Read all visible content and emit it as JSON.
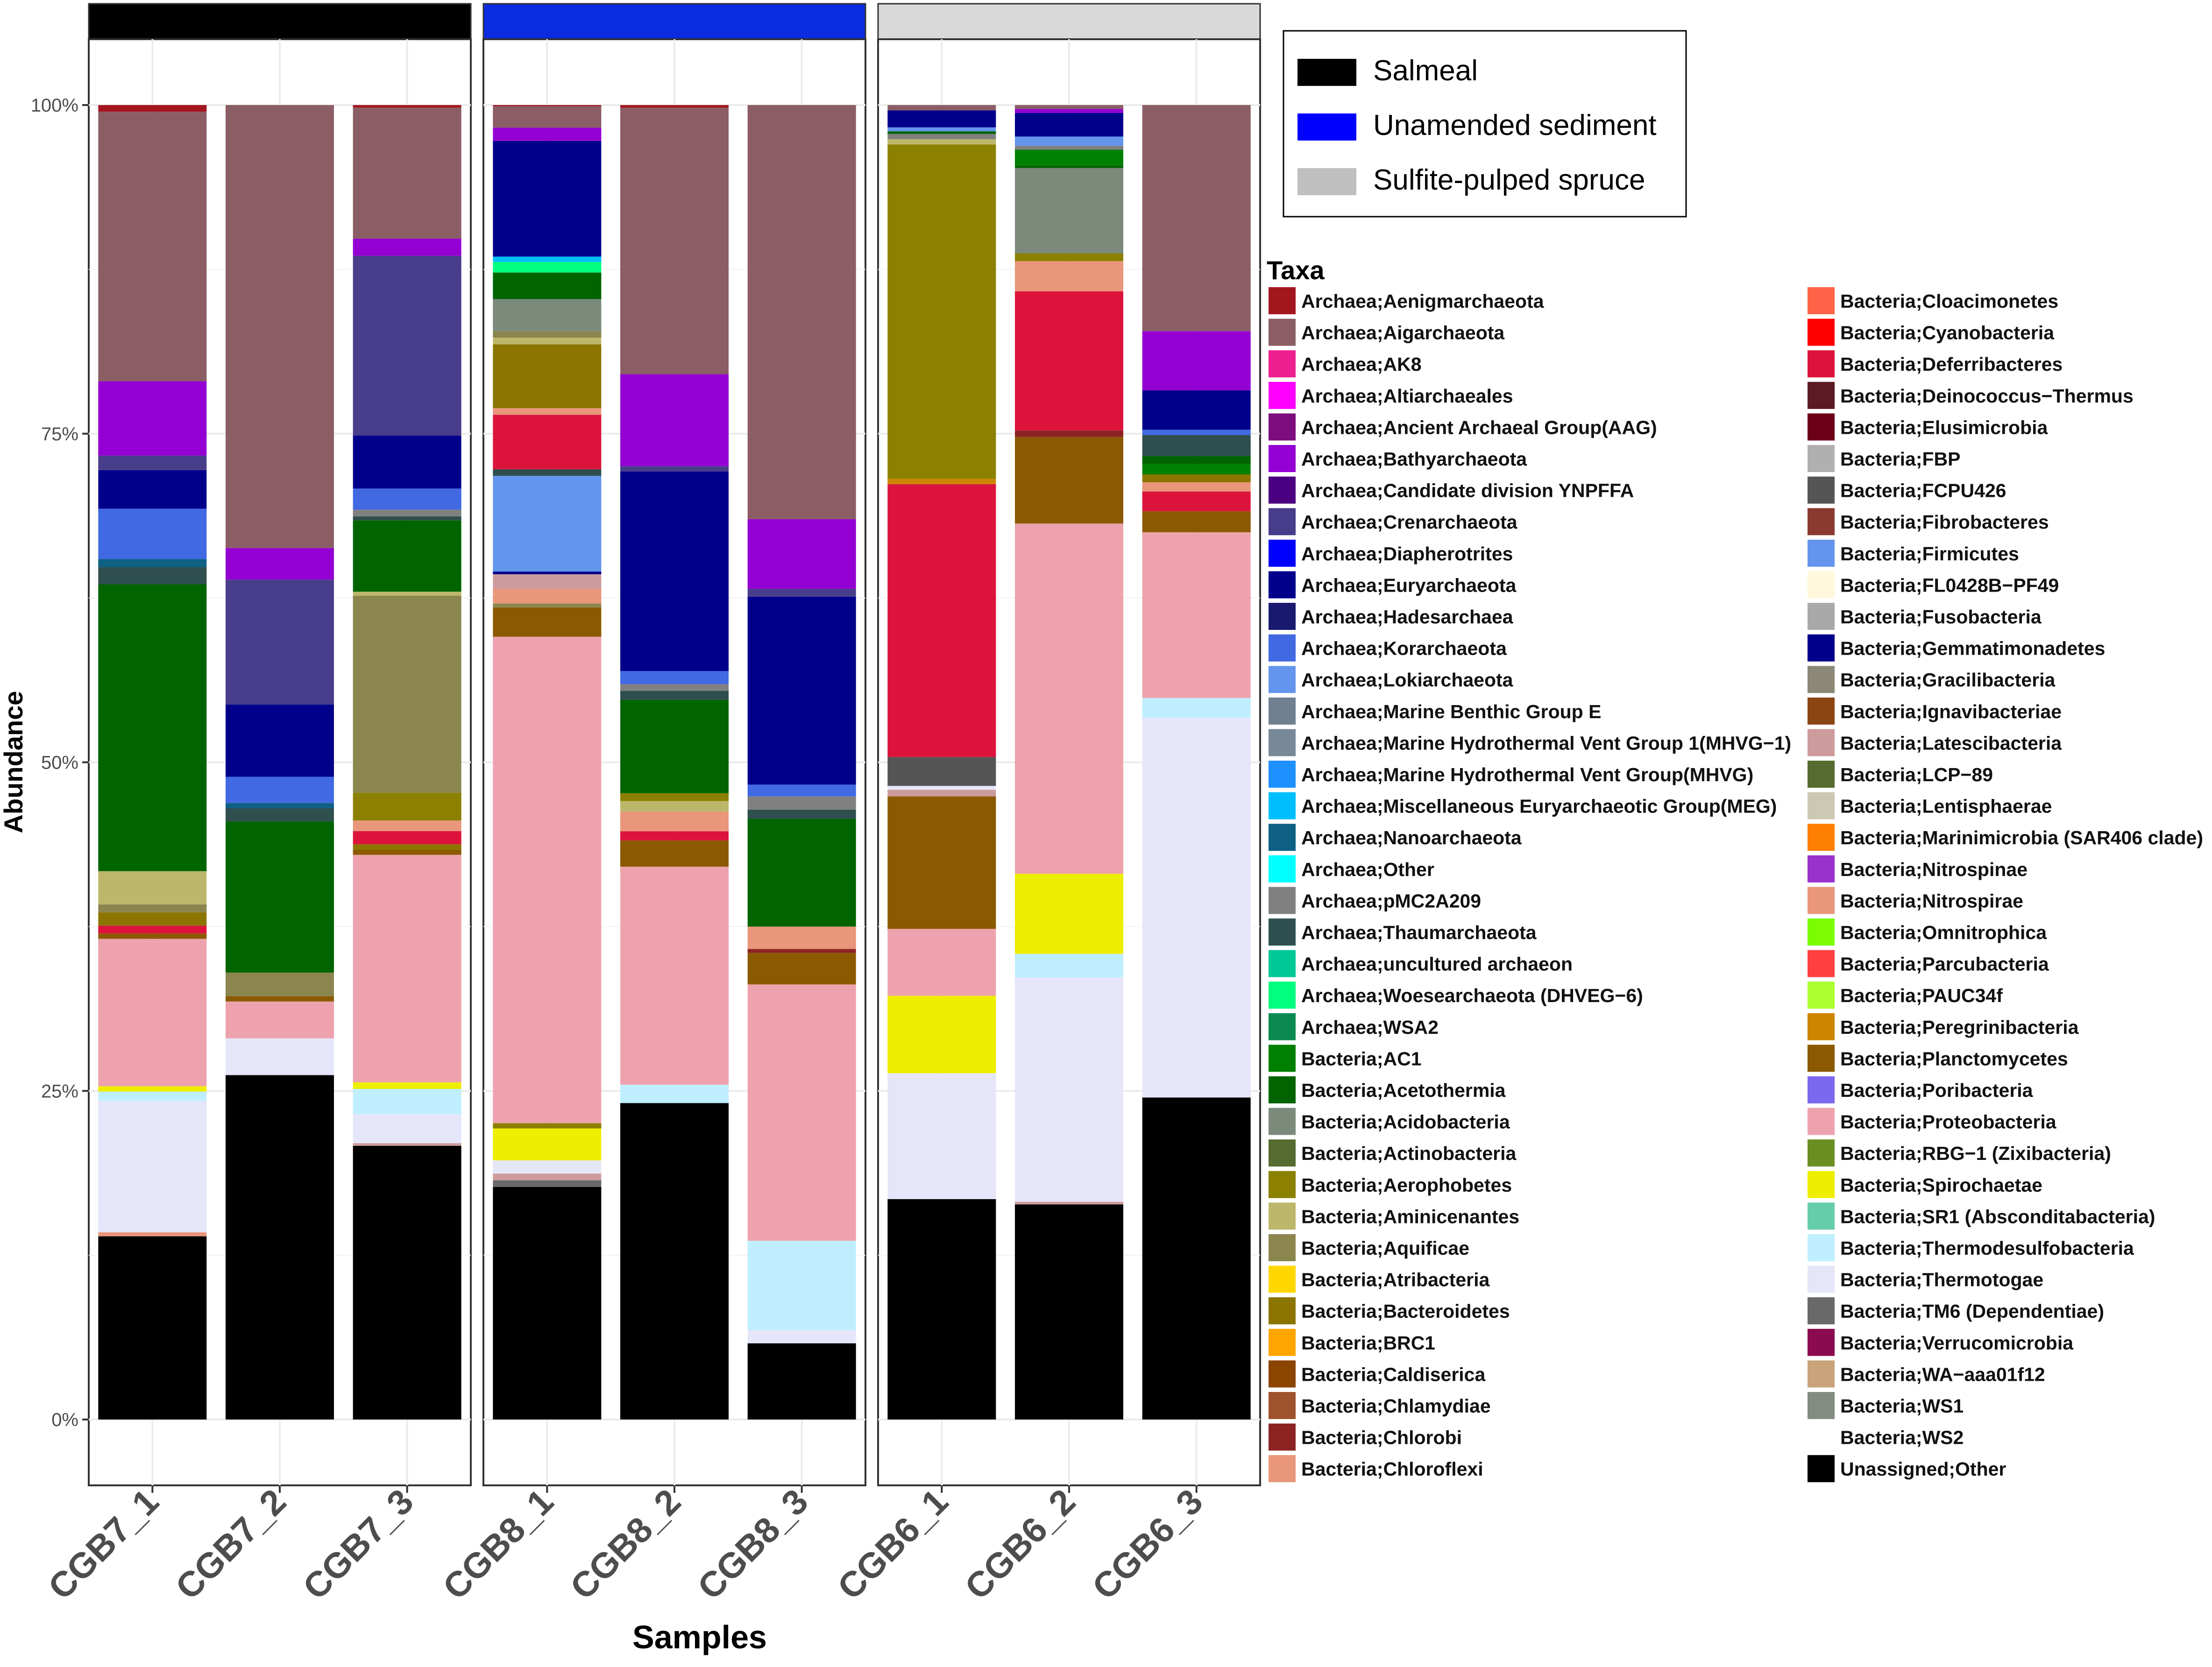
{
  "chart_data": {
    "type": "bar",
    "stacked": true,
    "percent": true,
    "ylabel": "Abundance",
    "xlabel": "Samples",
    "ylim": [
      0,
      100
    ],
    "yticks": [
      0,
      25,
      50,
      75,
      100
    ],
    "ytick_labels": [
      "0%",
      "25%",
      "50%",
      "75%",
      "100%"
    ],
    "grid": true,
    "legend_position": "right",
    "group_legend": {
      "items": [
        {
          "label": "Salmeal",
          "color": "#000000"
        },
        {
          "label": "Unamended sediment",
          "color": "#0000ff"
        },
        {
          "label": "Sulfite-pulped spruce",
          "color": "#bfbfbf"
        }
      ]
    },
    "groups": [
      {
        "name": "Salmeal",
        "strip_color": "#000000",
        "samples": [
          "CGB7_1",
          "CGB7_2",
          "CGB7_3"
        ]
      },
      {
        "name": "Unamended sediment",
        "strip_color": "#0a2be0",
        "samples": [
          "CGB8_1",
          "CGB8_2",
          "CGB8_3"
        ]
      },
      {
        "name": "Sulfite-pulped spruce",
        "strip_color": "#d9d9d9",
        "samples": [
          "CGB6_1",
          "CGB6_2",
          "CGB6_3"
        ]
      }
    ],
    "taxa_legend_title": "Taxa",
    "taxa": [
      {
        "name": "Archaea;Aenigmarchaeota",
        "color": "#a4161e"
      },
      {
        "name": "Archaea;Aigarchaeota",
        "color": "#8b5e65"
      },
      {
        "name": "Archaea;AK8",
        "color": "#ee1f8f"
      },
      {
        "name": "Archaea;Altiarchaeales",
        "color": "#ff00ff"
      },
      {
        "name": "Archaea;Ancient Archaeal Group(AAG)",
        "color": "#7d0d7f"
      },
      {
        "name": "Archaea;Bathyarchaeota",
        "color": "#9400d3"
      },
      {
        "name": "Archaea;Candidate division YNPFFA",
        "color": "#4b0082"
      },
      {
        "name": "Archaea;Crenarchaeota",
        "color": "#483d8b"
      },
      {
        "name": "Archaea;Diapherotrites",
        "color": "#0000ff"
      },
      {
        "name": "Archaea;Euryarchaeota",
        "color": "#00008b"
      },
      {
        "name": "Archaea;Hadesarchaea",
        "color": "#191970"
      },
      {
        "name": "Archaea;Korarchaeota",
        "color": "#4169e1"
      },
      {
        "name": "Archaea;Lokiarchaeota",
        "color": "#6495ed"
      },
      {
        "name": "Archaea;Marine Benthic Group E",
        "color": "#708090"
      },
      {
        "name": "Archaea;Marine Hydrothermal Vent Group 1(MHVG−1)",
        "color": "#778899"
      },
      {
        "name": "Archaea;Marine Hydrothermal Vent Group(MHVG)",
        "color": "#1e90ff"
      },
      {
        "name": "Archaea;Miscellaneous Euryarchaeotic Group(MEG)",
        "color": "#00bfff"
      },
      {
        "name": "Archaea;Nanoarchaeota",
        "color": "#0e6084"
      },
      {
        "name": "Archaea;Other",
        "color": "#00ffff"
      },
      {
        "name": "Archaea;pMC2A209",
        "color": "#808080"
      },
      {
        "name": "Archaea;Thaumarchaeota",
        "color": "#2f4f4f"
      },
      {
        "name": "Archaea;uncultured archaeon",
        "color": "#00c896"
      },
      {
        "name": "Archaea;Woesearchaeota (DHVEG−6)",
        "color": "#00ff7f"
      },
      {
        "name": "Archaea;WSA2",
        "color": "#0b8a4f"
      },
      {
        "name": "Bacteria;AC1",
        "color": "#008000"
      },
      {
        "name": "Bacteria;Acetothermia",
        "color": "#006400"
      },
      {
        "name": "Bacteria;Acidobacteria",
        "color": "#7c8a7c"
      },
      {
        "name": "Bacteria;Actinobacteria",
        "color": "#556b2f"
      },
      {
        "name": "Bacteria;Aerophobetes",
        "color": "#8b8000"
      },
      {
        "name": "Bacteria;Aminicenantes",
        "color": "#bdb76b"
      },
      {
        "name": "Bacteria;Aquificae",
        "color": "#8b864e"
      },
      {
        "name": "Bacteria;Atribacteria",
        "color": "#ffd700"
      },
      {
        "name": "Bacteria;Bacteroidetes",
        "color": "#8b7500"
      },
      {
        "name": "Bacteria;BRC1",
        "color": "#ffa500"
      },
      {
        "name": "Bacteria;Caldiserica",
        "color": "#8b4500"
      },
      {
        "name": "Bacteria;Chlamydiae",
        "color": "#a0522d"
      },
      {
        "name": "Bacteria;Chlorobi",
        "color": "#8b2323"
      },
      {
        "name": "Bacteria;Chloroflexi",
        "color": "#e9967a"
      },
      {
        "name": "Bacteria;Cloacimonetes",
        "color": "#ff6347"
      },
      {
        "name": "Bacteria;Cyanobacteria",
        "color": "#ff0000"
      },
      {
        "name": "Bacteria;Deferribacteres",
        "color": "#dc143c"
      },
      {
        "name": "Bacteria;Deinococcus−Thermus",
        "color": "#5c1a24"
      },
      {
        "name": "Bacteria;Elusimicrobia",
        "color": "#6b0018"
      },
      {
        "name": "Bacteria;FBP",
        "color": "#b0b0b0"
      },
      {
        "name": "Bacteria;FCPU426",
        "color": "#555555"
      },
      {
        "name": "Bacteria;Fibrobacteres",
        "color": "#8b3a2f"
      },
      {
        "name": "Bacteria;Firmicutes",
        "color": "#6495ed"
      },
      {
        "name": "Bacteria;FL0428B−PF49",
        "color": "#fff8dc"
      },
      {
        "name": "Bacteria;Fusobacteria",
        "color": "#a9a9a9"
      },
      {
        "name": "Bacteria;Gemmatimonadetes",
        "color": "#00008b"
      },
      {
        "name": "Bacteria;Gracilibacteria",
        "color": "#8b8878"
      },
      {
        "name": "Bacteria;Ignavibacteriae",
        "color": "#8b4513"
      },
      {
        "name": "Bacteria;Latescibacteria",
        "color": "#cd9b9b"
      },
      {
        "name": "Bacteria;LCP−89",
        "color": "#556b2f"
      },
      {
        "name": "Bacteria;Lentisphaerae",
        "color": "#cdc8b1"
      },
      {
        "name": "Bacteria;Marinimicrobia (SAR406 clade)",
        "color": "#ff7f00"
      },
      {
        "name": "Bacteria;Nitrospinae",
        "color": "#9932cc"
      },
      {
        "name": "Bacteria;Nitrospirae",
        "color": "#e9967a"
      },
      {
        "name": "Bacteria;Omnitrophica",
        "color": "#7cfc00"
      },
      {
        "name": "Bacteria;Parcubacteria",
        "color": "#ff4040"
      },
      {
        "name": "Bacteria;PAUC34f",
        "color": "#adff2f"
      },
      {
        "name": "Bacteria;Peregrinibacteria",
        "color": "#cd8500"
      },
      {
        "name": "Bacteria;Planctomycetes",
        "color": "#8b5a00"
      },
      {
        "name": "Bacteria;Poribacteria",
        "color": "#7b68ee"
      },
      {
        "name": "Bacteria;Proteobacteria",
        "color": "#eea2ad"
      },
      {
        "name": "Bacteria;RBG−1 (Zixibacteria)",
        "color": "#6b8e23"
      },
      {
        "name": "Bacteria;Spirochaetae",
        "color": "#eeee00"
      },
      {
        "name": "Bacteria;SR1 (Absconditabacteria)",
        "color": "#66cdaa"
      },
      {
        "name": "Bacteria;Thermodesulfobacteria",
        "color": "#bfefff"
      },
      {
        "name": "Bacteria;Thermotogae",
        "color": "#e6e6fa"
      },
      {
        "name": "Bacteria;TM6 (Dependentiae)",
        "color": "#696969"
      },
      {
        "name": "Bacteria;Verrucomicrobia",
        "color": "#8b0a50"
      },
      {
        "name": "Bacteria;WA−aaa01f12",
        "color": "#c9a47a"
      },
      {
        "name": "Bacteria;WS1",
        "color": "#838b83"
      },
      {
        "name": "Bacteria;WS2",
        "color": "#ffffff"
      },
      {
        "name": "Unassigned;Other",
        "color": "#000000"
      }
    ],
    "series_order_note": "segments listed bottom-to-top as [taxon, percent]",
    "bars": {
      "CGB7_1": [
        [
          "Unassigned;Other",
          13.8
        ],
        [
          "Bacteria;Chloroflexi",
          0.3
        ],
        [
          "Bacteria;Thermotogae",
          9.9
        ],
        [
          "Bacteria;Thermodesulfobacteria",
          0.7
        ],
        [
          "Bacteria;Spirochaetae",
          0.4
        ],
        [
          "Bacteria;Proteobacteria",
          11.1
        ],
        [
          "Bacteria;Planctomycetes",
          0.4
        ],
        [
          "Bacteria;Deferribacteres",
          0.6
        ],
        [
          "Bacteria;Bacteroidetes",
          1.0
        ],
        [
          "Bacteria;Aquificae",
          0.6
        ],
        [
          "Bacteria;Aminicenantes",
          2.5
        ],
        [
          "Bacteria;Acetothermia",
          21.6
        ],
        [
          "Archaea;Thaumarchaeota",
          1.3
        ],
        [
          "Archaea;Nanoarchaeota",
          0.6
        ],
        [
          "Archaea;Korarchaeota",
          3.8
        ],
        [
          "Archaea;Euryarchaeota",
          2.9
        ],
        [
          "Archaea;Crenarchaeota",
          1.1
        ],
        [
          "Archaea;Bathyarchaeota",
          5.6
        ],
        [
          "Archaea;Aigarchaeota",
          20.3
        ],
        [
          "Archaea;Aenigmarchaeota",
          0.5
        ]
      ],
      "CGB7_2": [
        [
          "Unassigned;Other",
          26.2
        ],
        [
          "Bacteria;Thermotogae",
          2.8
        ],
        [
          "Bacteria;Proteobacteria",
          2.8
        ],
        [
          "Bacteria;Planctomycetes",
          0.4
        ],
        [
          "Bacteria;Aquificae",
          1.8
        ],
        [
          "Bacteria;Acetothermia",
          11.5
        ],
        [
          "Archaea;Thaumarchaeota",
          1.0
        ],
        [
          "Archaea;Nanoarchaeota",
          0.4
        ],
        [
          "Archaea;Korarchaeota",
          2.0
        ],
        [
          "Archaea;Euryarchaeota",
          5.5
        ],
        [
          "Archaea;Crenarchaeota",
          9.5
        ],
        [
          "Archaea;Bathyarchaeota",
          2.4
        ],
        [
          "Archaea;Aigarchaeota",
          33.7
        ]
      ],
      "CGB7_3": [
        [
          "Unassigned;Other",
          20.7
        ],
        [
          "Bacteria;Latescibacteria",
          0.2
        ],
        [
          "Bacteria;Thermotogae",
          2.2
        ],
        [
          "Bacteria;Thermodesulfobacteria",
          1.9
        ],
        [
          "Bacteria;Spirochaetae",
          0.5
        ],
        [
          "Bacteria;Proteobacteria",
          17.2
        ],
        [
          "Bacteria;Planctomycetes",
          0.4
        ],
        [
          "Bacteria;Bacteroidetes",
          0.4
        ],
        [
          "Bacteria;Deferribacteres",
          1.0
        ],
        [
          "Bacteria;Chloroflexi",
          0.8
        ],
        [
          "Bacteria;Aerophobetes",
          2.1
        ],
        [
          "Bacteria;Aquificae",
          14.9
        ],
        [
          "Bacteria;Aminicenantes",
          0.3
        ],
        [
          "Bacteria;Acetothermia",
          5.4
        ],
        [
          "Archaea;Thaumarchaeota",
          0.3
        ],
        [
          "Archaea;pMC2A209",
          0.5
        ],
        [
          "Archaea;Korarchaeota",
          1.6
        ],
        [
          "Archaea;Euryarchaeota",
          4.0
        ],
        [
          "Archaea;Crenarchaeota",
          13.6
        ],
        [
          "Archaea;Bathyarchaeota",
          1.3
        ],
        [
          "Archaea;Aigarchaeota",
          9.9
        ],
        [
          "Archaea;Aenigmarchaeota",
          0.2
        ]
      ],
      "CGB8_1": [
        [
          "Unassigned;Other",
          17.5
        ],
        [
          "Bacteria;TM6 (Dependentiae)",
          0.5
        ],
        [
          "Bacteria;Latescibacteria",
          0.5
        ],
        [
          "Bacteria;Thermotogae",
          1.0
        ],
        [
          "Bacteria;Spirochaetae",
          2.4
        ],
        [
          "Bacteria;Aerophobetes",
          0.4
        ],
        [
          "Bacteria;Proteobacteria",
          36.6
        ],
        [
          "Bacteria;Planctomycetes",
          2.2
        ],
        [
          "Bacteria;Aquificae",
          0.3
        ],
        [
          "Bacteria;Chloroflexi",
          1.1
        ],
        [
          "Bacteria;Latescibacteria",
          1.1
        ],
        [
          "Archaea;Euryarchaeota",
          0.2
        ],
        [
          "Archaea;Lokiarchaeota",
          7.2
        ],
        [
          "Archaea;Thaumarchaeota",
          0.5
        ],
        [
          "Bacteria;Deferribacteres",
          4.1
        ],
        [
          "Bacteria;Chloroflexi",
          0.5
        ],
        [
          "Bacteria;Bacteroidetes",
          4.8
        ],
        [
          "Bacteria;Aminicenantes",
          0.5
        ],
        [
          "Bacteria;Aquificae",
          0.5
        ],
        [
          "Bacteria;Acidobacteria",
          2.4
        ],
        [
          "Bacteria;Acetothermia",
          2.0
        ],
        [
          "Archaea;Woesearchaeota (DHVEG−6)",
          0.8
        ],
        [
          "Archaea;Miscellaneous Euryarchaeotic Group(MEG)",
          0.4
        ],
        [
          "Archaea;Euryarchaeota",
          8.7
        ],
        [
          "Archaea;Bathyarchaeota",
          1.0
        ],
        [
          "Archaea;Aigarchaeota",
          1.6
        ],
        [
          "Archaea;Aenigmarchaeota",
          0.1
        ]
      ],
      "CGB8_2": [
        [
          "Unassigned;Other",
          24.1
        ],
        [
          "Bacteria;Thermodesulfobacteria",
          1.4
        ],
        [
          "Bacteria;Proteobacteria",
          16.6
        ],
        [
          "Bacteria;Planctomycetes",
          2.0
        ],
        [
          "Bacteria;Deferribacteres",
          0.7
        ],
        [
          "Bacteria;Chloroflexi",
          1.5
        ],
        [
          "Bacteria;Aminicenantes",
          0.8
        ],
        [
          "Bacteria;Aerophobetes",
          0.6
        ],
        [
          "Bacteria;Acetothermia",
          7.1
        ],
        [
          "Archaea;Thaumarchaeota",
          0.7
        ],
        [
          "Archaea;pMC2A209",
          0.5
        ],
        [
          "Archaea;Korarchaeota",
          1.0
        ],
        [
          "Archaea;Euryarchaeota",
          15.2
        ],
        [
          "Archaea;Crenarchaeota",
          0.4
        ],
        [
          "Archaea;Bathyarchaeota",
          7.0
        ],
        [
          "Archaea;Aigarchaeota",
          20.3
        ],
        [
          "Archaea;Aenigmarchaeota",
          0.2
        ]
      ],
      "CGB8_3": [
        [
          "Unassigned;Other",
          5.8
        ],
        [
          "Bacteria;Thermotogae",
          1.0
        ],
        [
          "Bacteria;Thermodesulfobacteria",
          6.8
        ],
        [
          "Bacteria;Proteobacteria",
          19.5
        ],
        [
          "Bacteria;Planctomycetes",
          2.4
        ],
        [
          "Bacteria;Chlorobi",
          0.3
        ],
        [
          "Bacteria;Chloroflexi",
          1.7
        ],
        [
          "Bacteria;Acetothermia",
          8.2
        ],
        [
          "Archaea;Thaumarchaeota",
          0.7
        ],
        [
          "Archaea;pMC2A209",
          1.0
        ],
        [
          "Archaea;Korarchaeota",
          0.9
        ],
        [
          "Archaea;Euryarchaeota",
          14.3
        ],
        [
          "Archaea;Crenarchaeota",
          0.6
        ],
        [
          "Archaea;Bathyarchaeota",
          5.3
        ],
        [
          "Archaea;Aigarchaeota",
          31.5
        ]
      ],
      "CGB6_1": [
        [
          "Unassigned;Other",
          16.8
        ],
        [
          "Bacteria;Thermotogae",
          9.6
        ],
        [
          "Bacteria;Spirochaetae",
          5.9
        ],
        [
          "Bacteria;Proteobacteria",
          5.1
        ],
        [
          "Bacteria;Planctomycetes",
          10.1
        ],
        [
          "Bacteria;Latescibacteria",
          0.5
        ],
        [
          "Bacteria;Thermotogae",
          0.3
        ],
        [
          "Bacteria;FCPU426",
          2.2
        ],
        [
          "Bacteria;Deferribacteres",
          20.8
        ],
        [
          "Bacteria;Peregrinibacteria",
          0.4
        ],
        [
          "Bacteria;Aerophobetes",
          25.5
        ],
        [
          "Bacteria;Aminicenantes",
          0.4
        ],
        [
          "Archaea;pMC2A209",
          0.4
        ],
        [
          "Bacteria;Acetothermia",
          0.2
        ],
        [
          "Archaea;Lokiarchaeota",
          0.3
        ],
        [
          "Archaea;Euryarchaeota",
          1.3
        ],
        [
          "Archaea;Aigarchaeota",
          0.4
        ]
      ],
      "CGB6_2": [
        [
          "Unassigned;Other",
          16.4
        ],
        [
          "Bacteria;Latescibacteria",
          0.2
        ],
        [
          "Bacteria;Thermotogae",
          17.1
        ],
        [
          "Bacteria;Thermodesulfobacteria",
          1.8
        ],
        [
          "Bacteria;Spirochaetae",
          6.1
        ],
        [
          "Bacteria;Proteobacteria",
          26.7
        ],
        [
          "Bacteria;Planctomycetes",
          6.6
        ],
        [
          "Bacteria;Chlorobi",
          0.5
        ],
        [
          "Bacteria;Deferribacteres",
          10.6
        ],
        [
          "Bacteria;Chloroflexi",
          2.3
        ],
        [
          "Bacteria;Aerophobetes",
          0.6
        ],
        [
          "Bacteria;Acidobacteria",
          6.5
        ],
        [
          "Bacteria;Acetothermia",
          0.2
        ],
        [
          "Bacteria;AC1",
          1.2
        ],
        [
          "Archaea;pMC2A209",
          0.3
        ],
        [
          "Archaea;Lokiarchaeota",
          0.7
        ],
        [
          "Archaea;Euryarchaeota",
          1.8
        ],
        [
          "Archaea;Bathyarchaeota",
          0.3
        ],
        [
          "Archaea;Aigarchaeota",
          0.3
        ]
      ],
      "CGB6_3": [
        [
          "Unassigned;Other",
          24.5
        ],
        [
          "Bacteria;Thermotogae",
          28.9
        ],
        [
          "Bacteria;Thermodesulfobacteria",
          1.5
        ],
        [
          "Bacteria;Proteobacteria",
          12.6
        ],
        [
          "Bacteria;Planctomycetes",
          1.6
        ],
        [
          "Bacteria;Deferribacteres",
          1.5
        ],
        [
          "Bacteria;Chloroflexi",
          0.7
        ],
        [
          "Bacteria;Bacteroidetes",
          0.6
        ],
        [
          "Bacteria;AC1",
          0.8
        ],
        [
          "Bacteria;Acetothermia",
          0.6
        ],
        [
          "Archaea;Thaumarchaeota",
          1.6
        ],
        [
          "Archaea;Korarchaeota",
          0.4
        ],
        [
          "Archaea;Euryarchaeota",
          3.0
        ],
        [
          "Archaea;Bathyarchaeota",
          4.5
        ],
        [
          "Archaea;Aigarchaeota",
          17.2
        ]
      ]
    }
  }
}
